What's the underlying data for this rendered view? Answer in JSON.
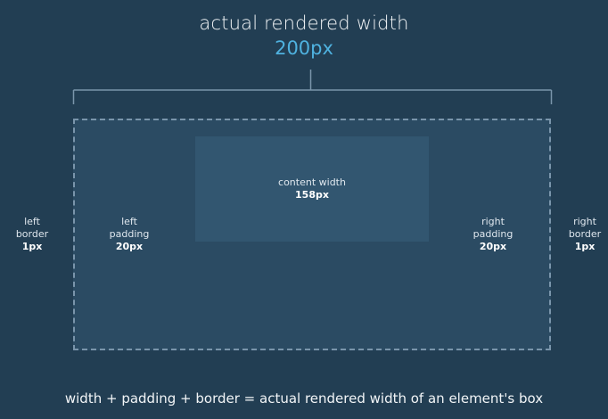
{
  "title": {
    "label": "actual rendered width",
    "value": "200px"
  },
  "content": {
    "label": "content width",
    "value": "158px"
  },
  "left_border": {
    "line1": "left",
    "line2": "border",
    "value": "1px"
  },
  "left_padding": {
    "line1": "left",
    "line2": "padding",
    "value": "20px"
  },
  "right_padding": {
    "line1": "right",
    "line2": "padding",
    "value": "20px"
  },
  "right_border": {
    "line1": "right",
    "line2": "border",
    "value": "1px"
  },
  "caption": "width + padding + border = actual rendered width of an element's box",
  "colors": {
    "background": "#223e53",
    "box_fill": "#2b4b63",
    "content_fill": "#325670",
    "accent": "#4fb2e0",
    "dashed_border": "#7a95ab"
  }
}
